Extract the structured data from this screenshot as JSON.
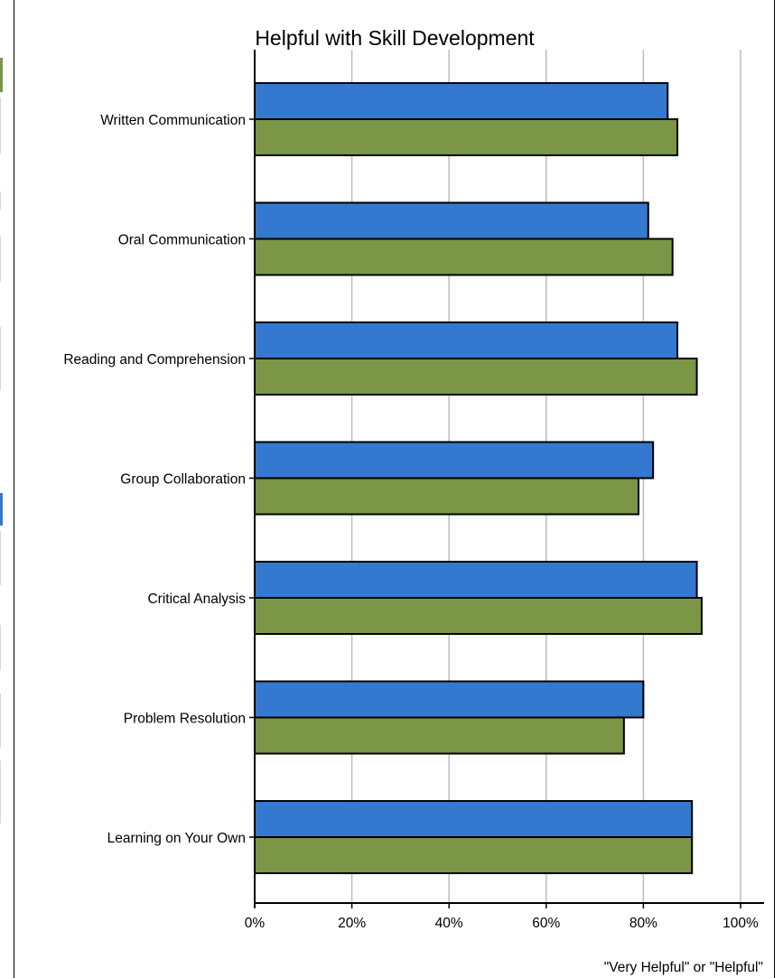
{
  "chart_data": {
    "type": "bar",
    "orientation": "horizontal",
    "title": "Helpful with Skill Development",
    "xlabel": "\"Very Helpful\" or \"Helpful\"",
    "ylabel": "",
    "categories": [
      "Written Communication",
      "Oral Communication",
      "Reading and Comprehension",
      "Group Collaboration",
      "Critical Analysis",
      "Problem Resolution",
      "Learning on Your Own"
    ],
    "series": [
      {
        "color": "#3578cf",
        "values": [
          85,
          81,
          87,
          82,
          91,
          80,
          90
        ]
      },
      {
        "color": "#7a9646",
        "values": [
          87,
          86,
          91,
          79,
          92,
          76,
          90
        ]
      }
    ],
    "xlim": [
      0,
      100
    ],
    "xticks": [
      0,
      20,
      40,
      60,
      80,
      100
    ],
    "xtick_labels": [
      "0%",
      "20%",
      "40%",
      "60%",
      "80%",
      "100%"
    ],
    "grid": "vertical",
    "legend": "left (color swatches only)"
  }
}
